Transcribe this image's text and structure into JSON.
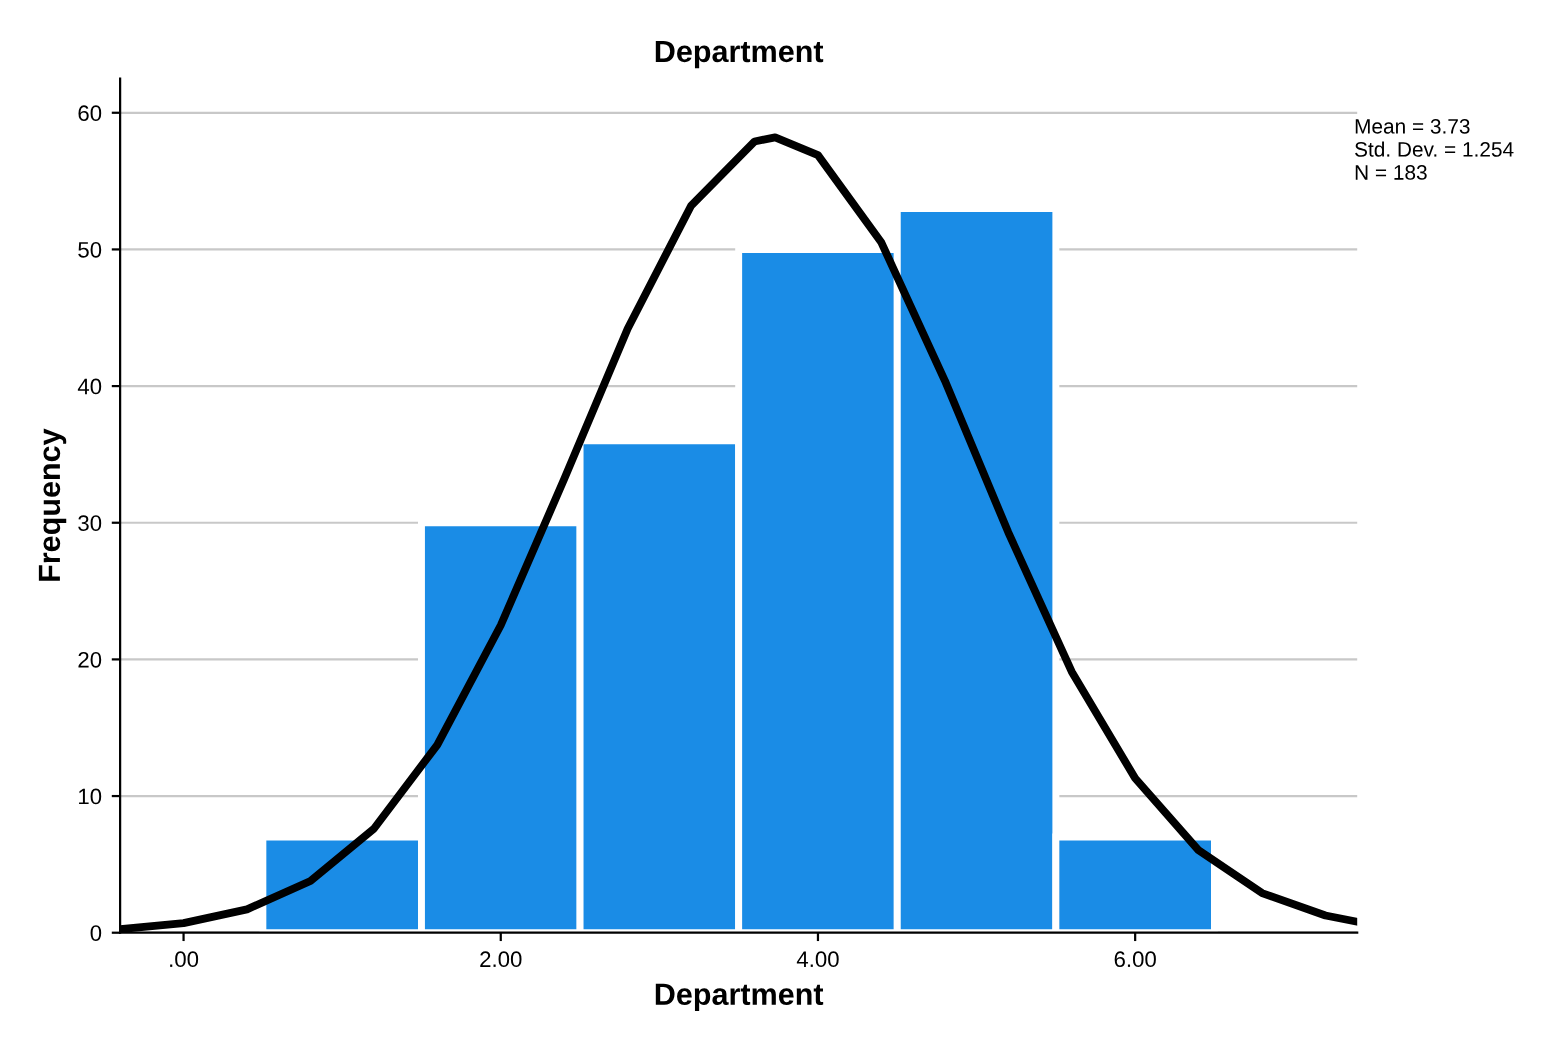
{
  "chart_data": {
    "type": "histogram",
    "title": "Department",
    "xlabel": "Department",
    "ylabel": "Frequency",
    "bins": [
      0.5,
      1.5,
      2.5,
      3.5,
      4.5,
      5.5,
      6.5
    ],
    "values": [
      7,
      30,
      36,
      50,
      53,
      7
    ],
    "color": "#1a8ce6",
    "series": [
      {
        "type": "line",
        "color": "#000000",
        "x": [
          -0.4,
          0.0,
          0.4,
          0.8,
          1.2,
          1.6,
          2.0,
          2.4,
          2.8,
          3.2,
          3.6,
          3.73,
          4.0,
          4.4,
          4.8,
          5.2,
          5.6,
          6.0,
          6.4,
          6.8,
          7.2,
          7.4
        ],
        "values": [
          0.26,
          0.7,
          1.71,
          3.79,
          7.61,
          13.75,
          22.5,
          33.2,
          44.2,
          53.2,
          57.9,
          58.2,
          56.9,
          50.5,
          40.4,
          29.3,
          19.1,
          11.3,
          6.03,
          2.9,
          1.26,
          0.8
        ]
      }
    ],
    "xlim": [
      -0.4,
      7.4
    ],
    "xticks": [
      {
        "value": 0,
        "label": ".00"
      },
      {
        "value": 2,
        "label": "2.00"
      },
      {
        "value": 4,
        "label": "4.00"
      },
      {
        "value": 6,
        "label": "6.00"
      }
    ],
    "ylim": [
      0,
      62.5
    ],
    "yticks": [
      0,
      10,
      20,
      30,
      40,
      50,
      60
    ],
    "grid": "y",
    "annotations": [
      "Mean = 3.73",
      "Std. Dev. = 1.254",
      "N = 183"
    ]
  }
}
